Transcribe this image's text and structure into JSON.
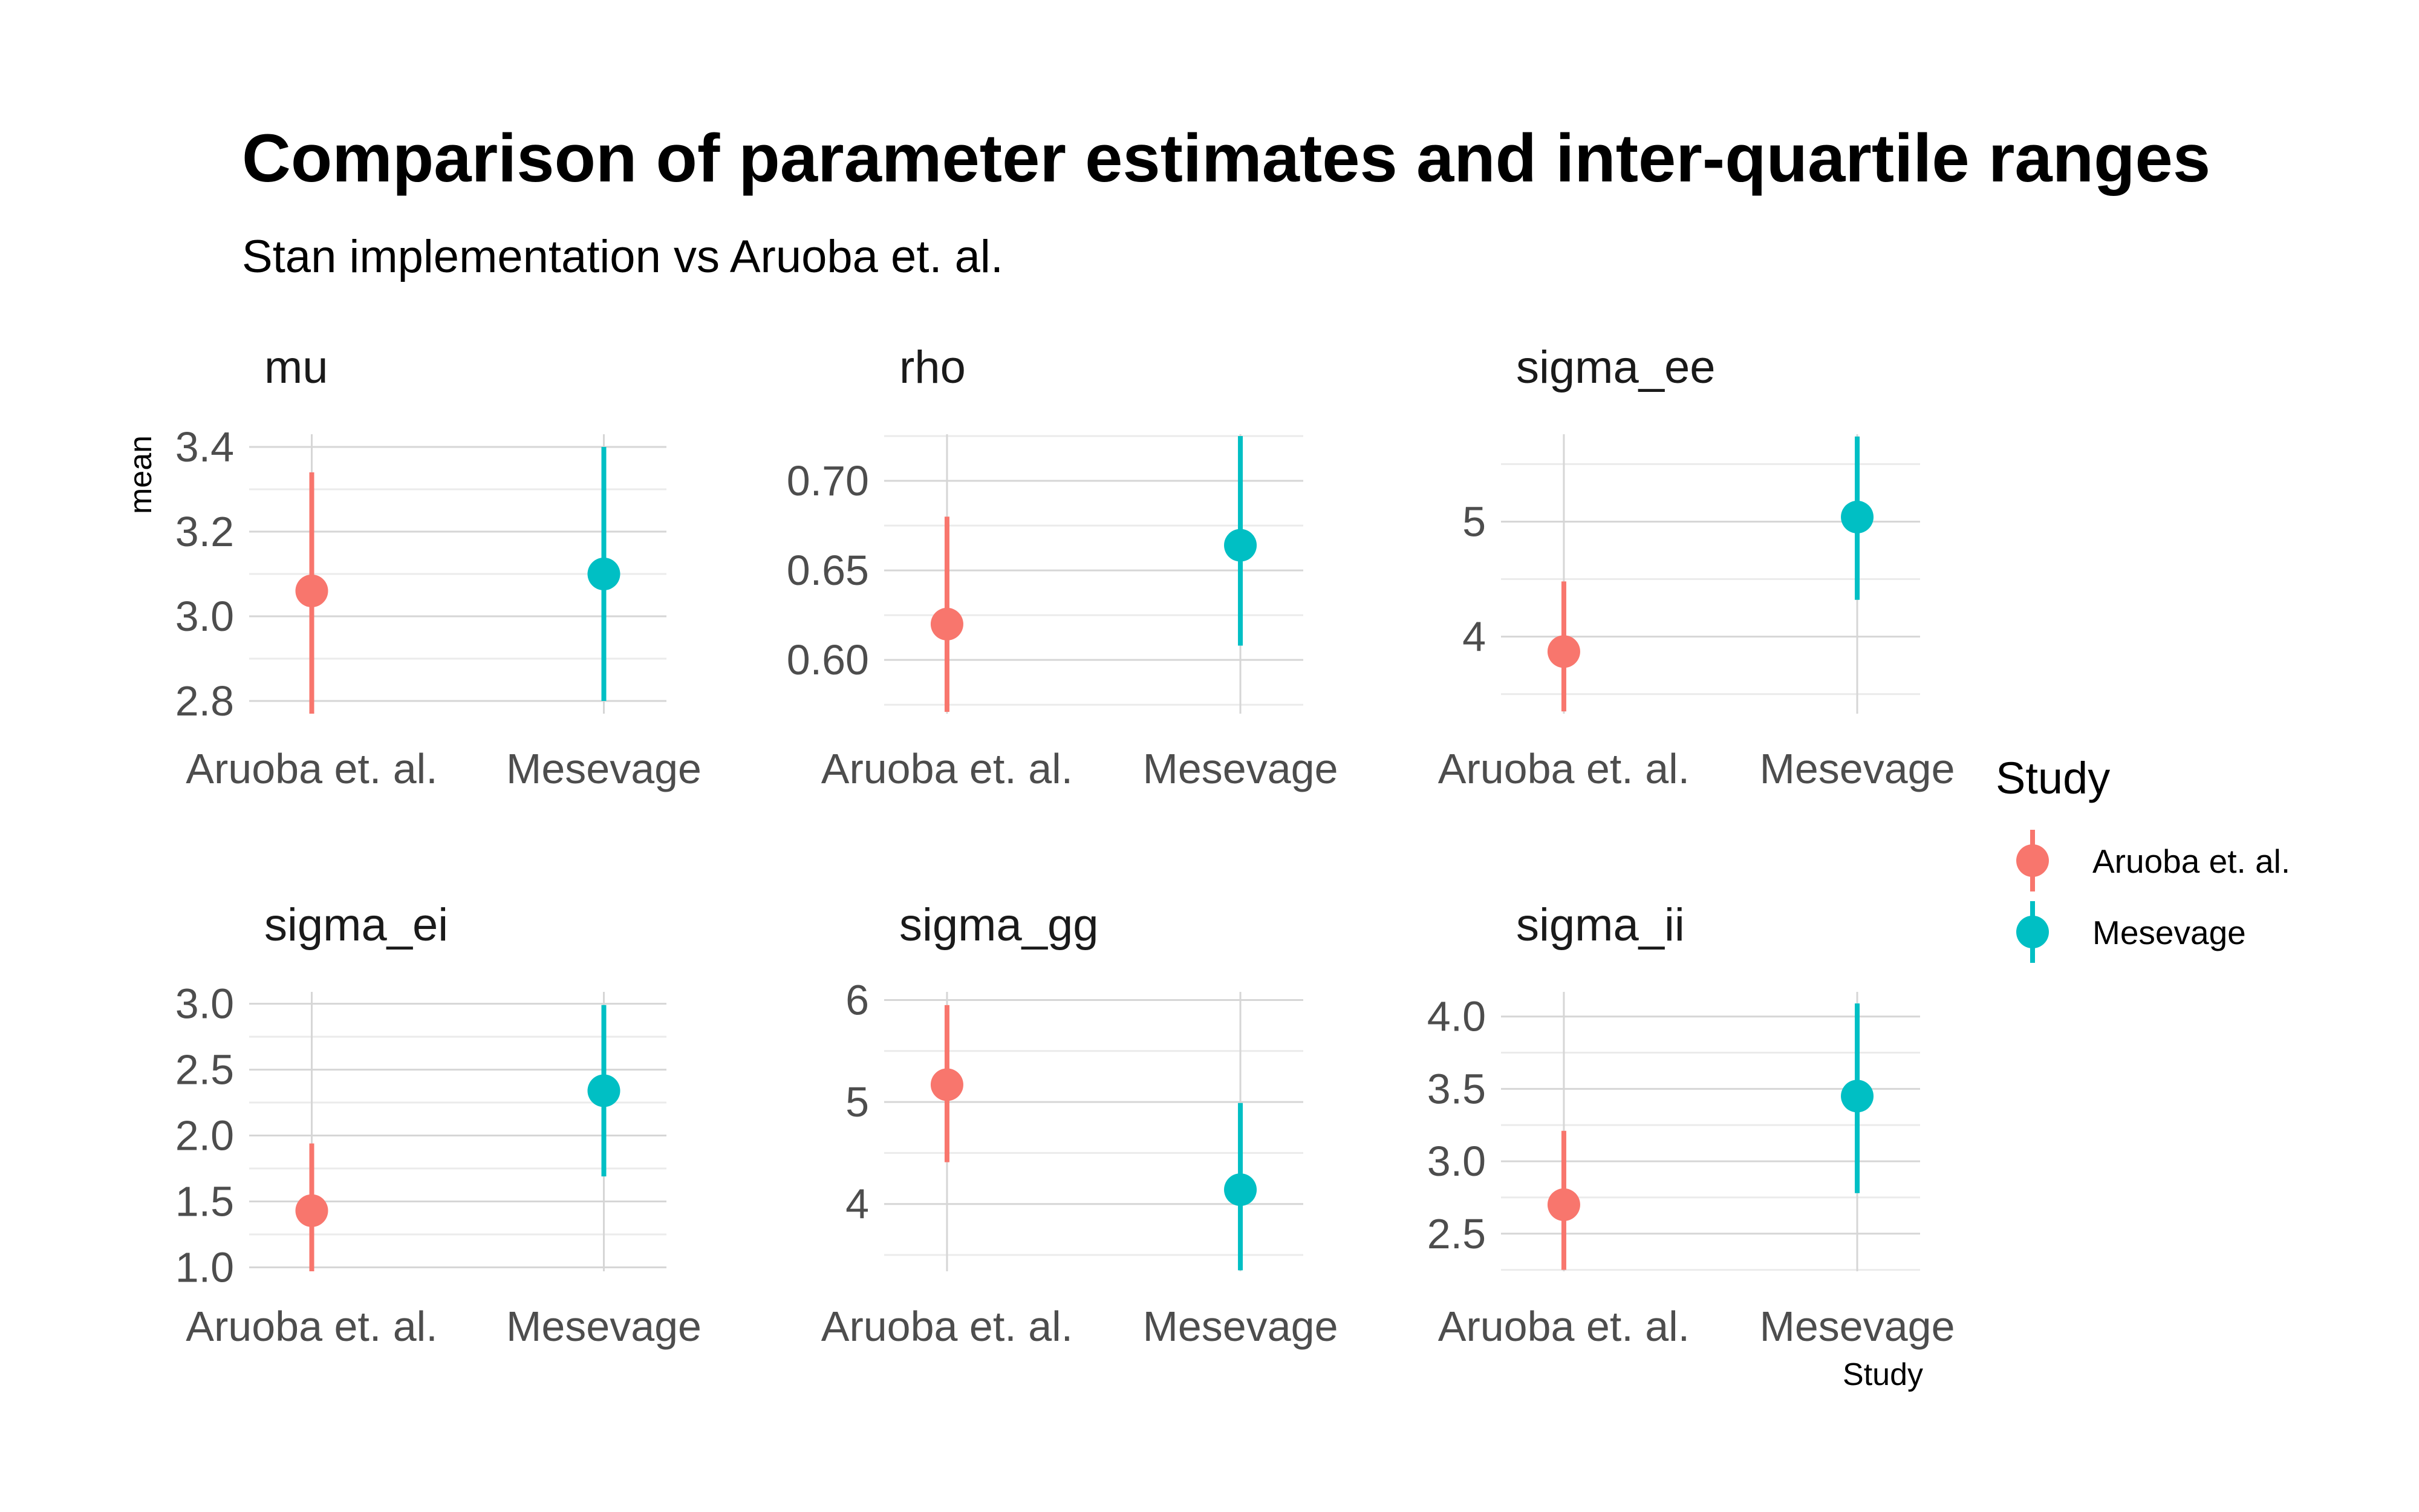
{
  "title": "Comparison of parameter estimates and inter-quartile ranges",
  "subtitle": "Stan implementation vs Aruoba et. al.",
  "xlabel": "Study",
  "ylabel": "mean",
  "legend": {
    "title": "Study",
    "entries": [
      {
        "label": "Aruoba et. al.",
        "color": "#F8766D"
      },
      {
        "label": "Mesevage",
        "color": "#00BFC4"
      }
    ]
  },
  "chart_data": {
    "type": "scatter",
    "categories": [
      "Aruoba et. al.",
      "Mesevage"
    ],
    "tick_labels": [
      "Aruoba et. al.",
      "Mesevage"
    ],
    "colors": [
      "#F8766D",
      "#00BFC4"
    ],
    "facets": [
      {
        "name": "mu",
        "yticks": [
          2.8,
          3.0,
          3.2,
          3.4
        ],
        "ytick_labels": [
          "2.8",
          "3.0",
          "3.2",
          "3.4"
        ],
        "ylim": [
          2.77,
          3.43
        ],
        "points": [
          {
            "study": "Aruoba et. al.",
            "mean": 3.06,
            "low": 2.77,
            "high": 3.34
          },
          {
            "study": "Mesevage",
            "mean": 3.1,
            "low": 2.8,
            "high": 3.4
          }
        ]
      },
      {
        "name": "rho",
        "yticks": [
          0.6,
          0.65,
          0.7
        ],
        "ytick_labels": [
          "0.60",
          "0.65",
          "0.70"
        ],
        "ylim": [
          0.57,
          0.726
        ],
        "points": [
          {
            "study": "Aruoba et. al.",
            "mean": 0.62,
            "low": 0.571,
            "high": 0.68
          },
          {
            "study": "Mesevage",
            "mean": 0.664,
            "low": 0.608,
            "high": 0.725
          }
        ]
      },
      {
        "name": "sigma_ee",
        "yticks": [
          4,
          5
        ],
        "ytick_labels": [
          "4",
          "5"
        ],
        "ylim": [
          3.33,
          5.76
        ],
        "points": [
          {
            "study": "Aruoba et. al.",
            "mean": 3.87,
            "low": 3.35,
            "high": 4.48
          },
          {
            "study": "Mesevage",
            "mean": 5.04,
            "low": 4.32,
            "high": 5.74
          }
        ]
      },
      {
        "name": "sigma_ei",
        "yticks": [
          1.0,
          1.5,
          2.0,
          2.5,
          3.0
        ],
        "ytick_labels": [
          "1.0",
          "1.5",
          "2.0",
          "2.5",
          "3.0"
        ],
        "ylim": [
          0.97,
          3.09
        ],
        "points": [
          {
            "study": "Aruoba et. al.",
            "mean": 1.43,
            "low": 0.97,
            "high": 1.94
          },
          {
            "study": "Mesevage",
            "mean": 2.34,
            "low": 1.69,
            "high": 2.99
          }
        ]
      },
      {
        "name": "sigma_gg",
        "yticks": [
          4,
          5,
          6
        ],
        "ytick_labels": [
          "4",
          "5",
          "6"
        ],
        "ylim": [
          3.34,
          6.08
        ],
        "points": [
          {
            "study": "Aruoba et. al.",
            "mean": 5.17,
            "low": 4.41,
            "high": 5.95
          },
          {
            "study": "Mesevage",
            "mean": 4.14,
            "low": 3.35,
            "high": 4.99
          }
        ]
      },
      {
        "name": "sigma_ii",
        "yticks": [
          2.5,
          3.0,
          3.5,
          4.0
        ],
        "ytick_labels": [
          "2.5",
          "3.0",
          "3.5",
          "4.0"
        ],
        "ylim": [
          2.24,
          4.17
        ],
        "points": [
          {
            "study": "Aruoba et. al.",
            "mean": 2.7,
            "low": 2.25,
            "high": 3.21
          },
          {
            "study": "Mesevage",
            "mean": 3.45,
            "low": 2.78,
            "high": 4.09
          }
        ]
      }
    ]
  }
}
